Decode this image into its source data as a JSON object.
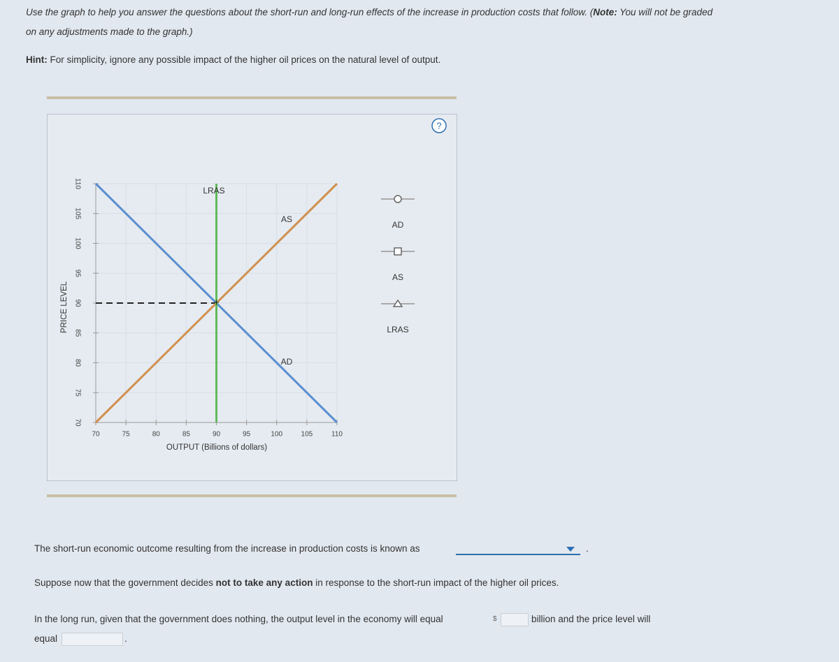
{
  "intro": {
    "before": "Use the graph to help you answer the questions about the short-run and long-run effects of the increase in production costs that follow. (",
    "bold": "Note:",
    "after": " You will not be graded on any adjustments made to the graph.)"
  },
  "hint": {
    "bold": "Hint:",
    "text": " For simplicity, ignore any possible impact of the higher oil prices on the natural level of output."
  },
  "graph": {
    "help": "?",
    "xlabel": "OUTPUT (Billions of dollars)",
    "ylabel": "PRICE LEVEL",
    "xlim": [
      70,
      110
    ],
    "ylim": [
      70,
      110
    ],
    "xticks": [
      70,
      75,
      80,
      85,
      90,
      95,
      100,
      105,
      110
    ],
    "yticks": [
      70,
      75,
      80,
      85,
      90,
      95,
      100,
      105,
      110
    ],
    "grid": true,
    "series": [
      {
        "name": "AD",
        "color": "#5b8fd0",
        "marker": "circle",
        "x": [
          70,
          110
        ],
        "y": [
          110,
          70
        ]
      },
      {
        "name": "AS",
        "color": "#d1904f",
        "marker": "square",
        "x": [
          70,
          110
        ],
        "y": [
          70,
          110
        ]
      },
      {
        "name": "LRAS",
        "color": "#62bb5c",
        "marker": "triangle",
        "x": [
          90,
          90
        ],
        "y": [
          70,
          110
        ]
      }
    ],
    "equilibrium": {
      "x": 90,
      "y": 90
    }
  },
  "q1": {
    "text": "The short-run economic outcome resulting from the increase in production costs is known as",
    "end": "."
  },
  "q2": {
    "before": "Suppose now that the government decides ",
    "bold": "not to take any action",
    "after": " in response to the short-run impact of the higher oil prices."
  },
  "q3": {
    "before": "In the long run, given that the government does nothing, the output level in the economy will equal",
    "currency": "$",
    "middle": "billion and the price level will",
    "equal": "equal",
    "end": "."
  }
}
